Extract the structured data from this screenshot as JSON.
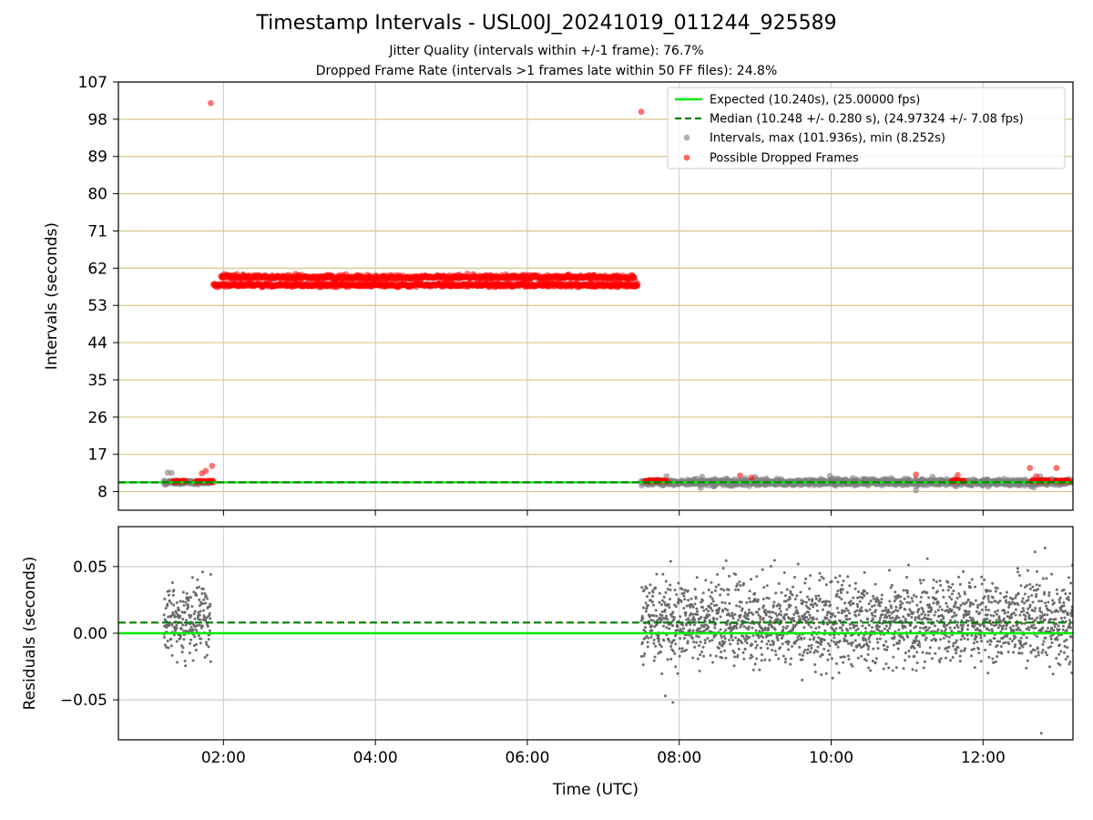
{
  "chart_title": "Timestamp Intervals - USL00J_20241019_011244_925589",
  "subtitle_1": "Jitter Quality (intervals within +/-1 frame): 76.7%",
  "subtitle_2": "Dropped Frame Rate (intervals >1 frames late within 50 FF files): 24.8%",
  "colors": {
    "expected": "#00ee00",
    "median": "#007f00",
    "intervals": "#808080",
    "dropped": "#ff0000",
    "hgrid": "#d8c68c",
    "vgrid": "#c8c8c8",
    "residual": "#666666"
  },
  "chart_data": [
    {
      "type": "scatter",
      "title": "Timestamp Intervals - USL00J_20241019_011244_925589",
      "xlabel": "",
      "ylabel": "Intervals (seconds)",
      "xlim": [
        "00:37",
        "13:11"
      ],
      "ylim": [
        3.5,
        107
      ],
      "yticks": [
        8,
        17,
        26,
        35,
        44,
        53,
        62,
        71,
        80,
        89,
        98,
        107
      ],
      "xticks": [
        "02:00",
        "04:00",
        "06:00",
        "08:00",
        "10:00",
        "12:00"
      ],
      "grid": "on",
      "legend_position": "top-right",
      "legend": [
        "Expected (10.240s), (25.00000 fps)",
        "Median (10.248 +/- 0.280 s), (24.97324 +/- 7.08 fps)",
        "Intervals, max (101.936s), min (8.252s)",
        "Possible Dropped Frames"
      ],
      "expected_interval": 10.24,
      "median_interval": 10.248,
      "interval_max": 101.936,
      "interval_min": 8.252,
      "series": [
        {
          "name": "Intervals, max (101.936s), min (8.252s)",
          "segments": [
            {
              "x_start": "01:13",
              "x_end": "01:50",
              "y_center": 10.25,
              "spread": 0.3
            },
            {
              "x_start": "07:30",
              "x_end": "13:11",
              "y_center": 10.25,
              "spread": 0.5
            }
          ],
          "points": [
            {
              "x": "01:16",
              "y": 12.6
            },
            {
              "x": "01:19",
              "y": 12.5
            },
            {
              "x": "07:50",
              "y": 11.7
            },
            {
              "x": "08:18",
              "y": 11.6
            },
            {
              "x": "09:00",
              "y": 11.5
            },
            {
              "x": "09:59",
              "y": 11.8
            },
            {
              "x": "11:20",
              "y": 11.6
            },
            {
              "x": "12:45",
              "y": 11.7
            },
            {
              "x": "12:40",
              "y": 9.0
            },
            {
              "x": "11:07",
              "y": 8.3
            },
            {
              "x": "08:17",
              "y": 8.9
            }
          ]
        },
        {
          "name": "Possible Dropped Frames",
          "segments": [
            {
              "x_start": "01:52",
              "x_end": "07:27",
              "y_center": 57.9,
              "spread": 0.3
            },
            {
              "x_start": "01:58",
              "x_end": "07:25",
              "y_center": 59.8,
              "spread": 0.4
            },
            {
              "x_start": "01:20",
              "x_end": "01:30",
              "y_center": 10.5,
              "spread": 0.1
            },
            {
              "x_start": "01:38",
              "x_end": "01:52",
              "y_center": 10.5,
              "spread": 0.1
            },
            {
              "x_start": "07:33",
              "x_end": "07:50",
              "y_center": 10.6,
              "spread": 0.1
            },
            {
              "x_start": "11:35",
              "x_end": "11:45",
              "y_center": 10.6,
              "spread": 0.1
            },
            {
              "x_start": "12:38",
              "x_end": "12:52",
              "y_center": 10.6,
              "spread": 0.1
            },
            {
              "x_start": "12:57",
              "x_end": "13:08",
              "y_center": 10.6,
              "spread": 0.1
            }
          ],
          "points": [
            {
              "x": "01:50",
              "y": 101.9
            },
            {
              "x": "07:30",
              "y": 99.8
            },
            {
              "x": "01:51",
              "y": 14.2
            },
            {
              "x": "01:46",
              "y": 13.0
            },
            {
              "x": "01:43",
              "y": 12.4
            },
            {
              "x": "01:52",
              "y": 10.2
            },
            {
              "x": "07:27",
              "y": 58.3
            },
            {
              "x": "02:57",
              "y": 60.6
            },
            {
              "x": "08:48",
              "y": 11.9
            },
            {
              "x": "08:57",
              "y": 11.4
            },
            {
              "x": "11:07",
              "y": 12.1
            },
            {
              "x": "11:40",
              "y": 12.0
            },
            {
              "x": "12:37",
              "y": 13.7
            },
            {
              "x": "12:42",
              "y": 11.7
            },
            {
              "x": "12:58",
              "y": 13.7
            }
          ]
        }
      ]
    },
    {
      "type": "scatter",
      "title": "",
      "xlabel": "Time (UTC)",
      "ylabel": "Residuals (seconds)",
      "xlim": [
        "00:37",
        "13:11"
      ],
      "ylim": [
        -0.08,
        0.08
      ],
      "yticks": [
        0.05,
        0.0,
        -0.05
      ],
      "ytick_labels": [
        "0.05",
        "0.00",
        "−0.05"
      ],
      "xticks": [
        "02:00",
        "04:00",
        "06:00",
        "08:00",
        "10:00",
        "12:00"
      ],
      "grid": "on",
      "expected_line": 0.0,
      "median_line": 0.008,
      "series": [
        {
          "name": "",
          "segments": [
            {
              "x_start": "01:13",
              "x_end": "01:50",
              "y_center": 0.008,
              "spread": 0.02
            },
            {
              "x_start": "07:30",
              "x_end": "13:11",
              "y_center": 0.008,
              "spread": 0.022
            }
          ],
          "points": [
            {
              "x": "12:46",
              "y": -0.075
            },
            {
              "x": "12:49",
              "y": 0.064
            },
            {
              "x": "12:41",
              "y": 0.061
            },
            {
              "x": "07:55",
              "y": -0.052
            },
            {
              "x": "07:49",
              "y": -0.047
            },
            {
              "x": "11:16",
              "y": 0.056
            }
          ]
        }
      ]
    }
  ]
}
